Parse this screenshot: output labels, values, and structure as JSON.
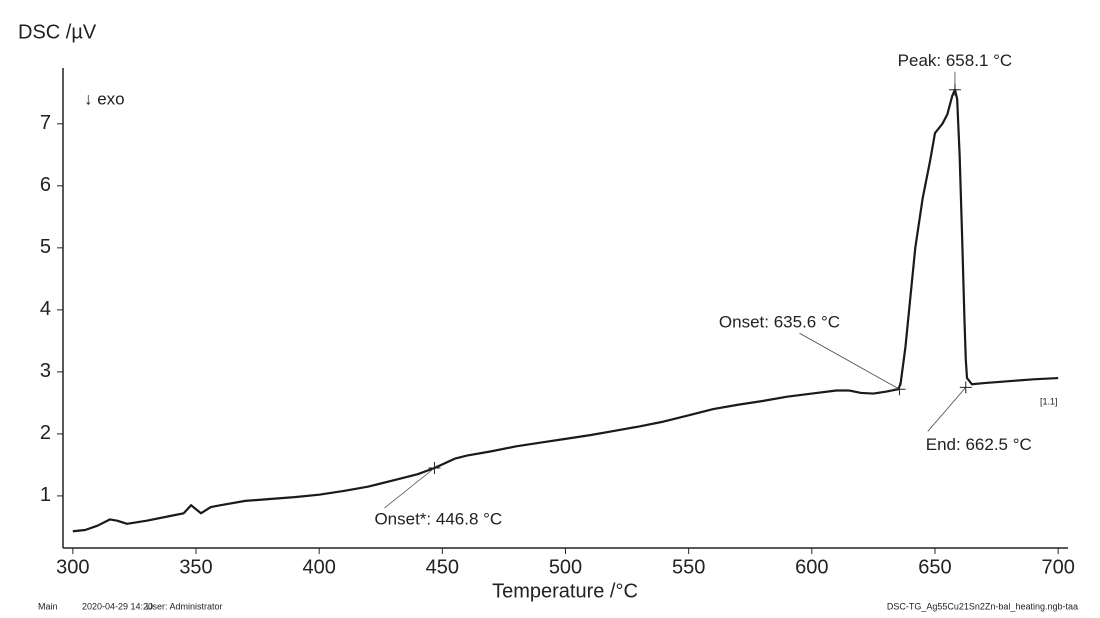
{
  "chart_data": {
    "type": "line",
    "y_label": "DSC /µV",
    "x_label": "Temperature /°C",
    "exo_label": "↓ exo",
    "curve_label": "[1.1]",
    "color": "#1a1a1a",
    "x": [
      300,
      305,
      310,
      315,
      318,
      322,
      330,
      340,
      345,
      348,
      352,
      356,
      360,
      370,
      380,
      390,
      400,
      410,
      420,
      430,
      440,
      446.8,
      455,
      460,
      470,
      480,
      490,
      500,
      510,
      520,
      530,
      540,
      550,
      560,
      570,
      580,
      590,
      600,
      610,
      615,
      620,
      625,
      630,
      635,
      636,
      638,
      640,
      642,
      645,
      648,
      650,
      653,
      655,
      657,
      658.1,
      659,
      660,
      661,
      662,
      662.5,
      663,
      665,
      670,
      680,
      690,
      700
    ],
    "values": [
      0.43,
      0.45,
      0.52,
      0.62,
      0.6,
      0.55,
      0.6,
      0.68,
      0.72,
      0.85,
      0.72,
      0.82,
      0.85,
      0.92,
      0.95,
      0.98,
      1.02,
      1.08,
      1.15,
      1.25,
      1.35,
      1.45,
      1.6,
      1.65,
      1.72,
      1.8,
      1.86,
      1.92,
      1.98,
      2.05,
      2.12,
      2.2,
      2.3,
      2.4,
      2.47,
      2.53,
      2.6,
      2.65,
      2.7,
      2.7,
      2.66,
      2.65,
      2.68,
      2.72,
      2.8,
      3.4,
      4.2,
      5.0,
      5.8,
      6.4,
      6.85,
      7.0,
      7.15,
      7.45,
      7.55,
      7.4,
      6.5,
      5.2,
      3.8,
      3.2,
      2.9,
      2.8,
      2.82,
      2.85,
      2.88,
      2.9
    ],
    "xlim": [
      296,
      704
    ],
    "ylim": [
      0.16,
      7.9
    ],
    "xticks": [
      300,
      350,
      400,
      450,
      500,
      550,
      600,
      650,
      700
    ],
    "yticks": [
      1,
      2,
      3,
      4,
      5,
      6,
      7
    ],
    "annotations": [
      {
        "text": "Peak: 658.1 °C",
        "x": 658.1,
        "y": 7.55
      },
      {
        "text": "Onset: 635.6 °C",
        "x": 635.6,
        "y": 2.72
      },
      {
        "text": "End: 662.5 °C",
        "x": 662.5,
        "y": 2.75
      },
      {
        "text": "Onset*: 446.8 °C",
        "x": 446.8,
        "y": 1.45
      }
    ],
    "footer_left": [
      "Main",
      "2020-04-29 14:20",
      "User: Administrator"
    ],
    "footer_right": "DSC-TG_Ag55Cu21Sn2Zn-bal_heating.ngb-taa"
  }
}
